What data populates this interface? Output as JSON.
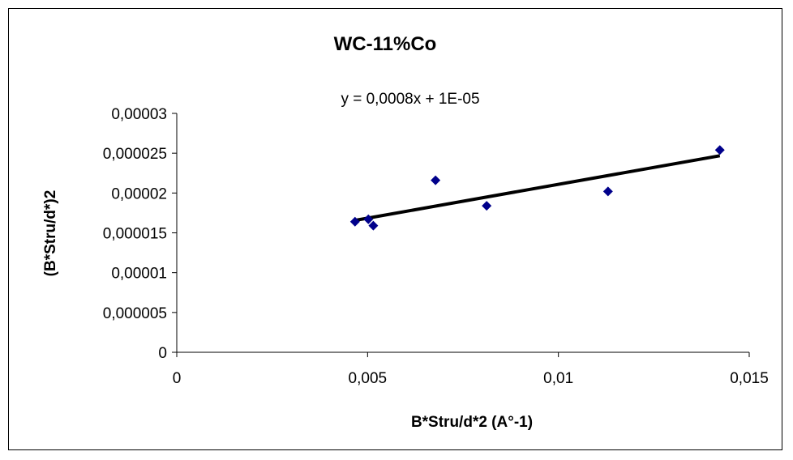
{
  "chart_data": {
    "type": "scatter",
    "title": "WC-11%Co",
    "xlabel": "B*Stru/d*2 (A°-1)",
    "ylabel": "(B*Stru/d*)2",
    "xlim": [
      0,
      0.015
    ],
    "ylim": [
      0,
      3e-05
    ],
    "x_ticks": [
      "0",
      "0,005",
      "0,01",
      "0,015"
    ],
    "y_ticks": [
      "0",
      "0,000005",
      "0,00001",
      "0,000015",
      "0,00002",
      "0,000025",
      "0,00003"
    ],
    "x_tick_values": [
      0,
      0.005,
      0.01,
      0.015
    ],
    "y_tick_values": [
      0,
      5e-06,
      1e-05,
      1.5e-05,
      2e-05,
      2.5e-05,
      3e-05
    ],
    "grid": false,
    "series": [
      {
        "marker": "diamond",
        "color": "#00008B",
        "points": [
          {
            "x": 0.00467,
            "y": 1.64e-05
          },
          {
            "x": 0.00502,
            "y": 1.67e-05
          },
          {
            "x": 0.00515,
            "y": 1.59e-05
          },
          {
            "x": 0.00678,
            "y": 2.16e-05
          },
          {
            "x": 0.00812,
            "y": 1.84e-05
          },
          {
            "x": 0.0113,
            "y": 2.02e-05
          },
          {
            "x": 0.01423,
            "y": 2.54e-05
          }
        ]
      }
    ],
    "trendline": {
      "equation": "y = 0,0008x + 1E-05",
      "slope": 0.000849,
      "intercept": 1.26e-05,
      "x_range": [
        0.00467,
        0.01423
      ],
      "color": "#000000"
    }
  }
}
